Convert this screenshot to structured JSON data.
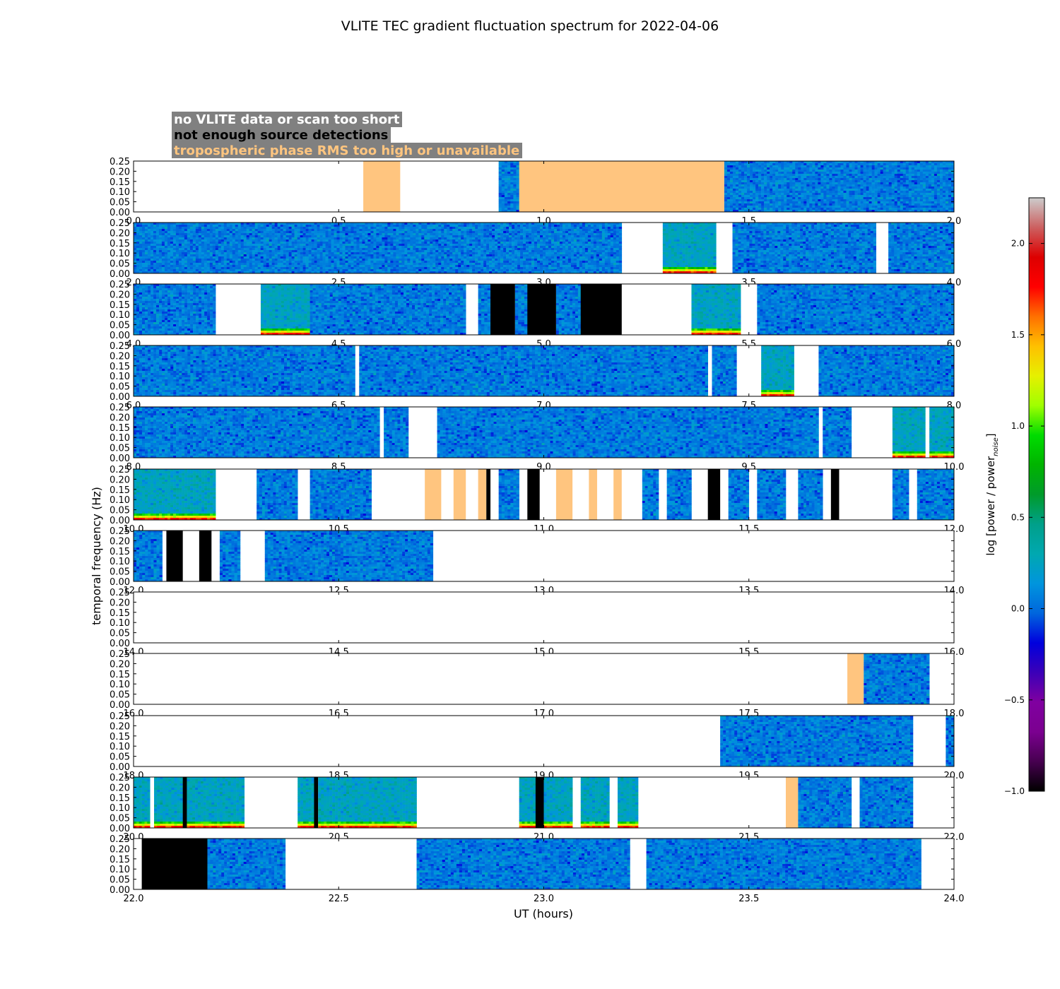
{
  "chart_data": {
    "type": "heatmap",
    "title": "VLITE TEC gradient fluctuation spectrum for 2022-04-06",
    "xlabel": "UT (hours)",
    "ylabel": "temporal frequency (Hz)",
    "ylim": [
      0,
      0.25
    ],
    "y_ticks": [
      "0.00",
      "0.05",
      "0.10",
      "0.15",
      "0.20",
      "0.25"
    ],
    "colorbar": {
      "label": "log [power / power",
      "label_sub": "noise",
      "label_end": "]",
      "colormap": "nipy_spectral",
      "range": [
        -1.0,
        2.25
      ],
      "ticks": [
        "−1.0",
        "−0.5",
        "0.0",
        "0.5",
        "1.0",
        "1.5",
        "2.0"
      ],
      "tick_values": [
        -1.0,
        -0.5,
        0.0,
        0.5,
        1.0,
        1.5,
        2.0
      ]
    },
    "legend": {
      "placement": "top-left",
      "items": [
        {
          "label": "no VLITE data or scan too short",
          "text_color": "#ffffff",
          "background": "#808080"
        },
        {
          "label": "not enough source detections",
          "text_color": "#000000",
          "background": "#808080"
        },
        {
          "label": "tropospheric phase RMS too high or unavailable",
          "text_color": "#ffc57f",
          "background": "#808080"
        }
      ]
    },
    "category_colors": {
      "no_data": "#ffffff",
      "no_detections": "#000000",
      "troposphere": "#ffc57f"
    },
    "panels": [
      {
        "xrange": [
          0,
          2
        ],
        "x_ticks": [
          "0.0",
          "0.5",
          "1.0",
          "1.5",
          "2.0"
        ],
        "segments": [
          {
            "start": 0.56,
            "end": 0.65,
            "kind": "troposphere"
          },
          {
            "start": 0.89,
            "end": 0.94,
            "kind": "data"
          },
          {
            "start": 0.94,
            "end": 1.44,
            "kind": "troposphere"
          },
          {
            "start": 1.44,
            "end": 2.0,
            "kind": "data"
          }
        ]
      },
      {
        "xrange": [
          2,
          4
        ],
        "x_ticks": [
          "2.0",
          "2.5",
          "3.0",
          "3.5",
          "4.0"
        ],
        "segments": [
          {
            "start": 2.0,
            "end": 3.19,
            "kind": "data"
          },
          {
            "start": 3.29,
            "end": 3.42,
            "kind": "data",
            "low_power": true
          },
          {
            "start": 3.46,
            "end": 3.81,
            "kind": "data"
          },
          {
            "start": 3.84,
            "end": 4.0,
            "kind": "data"
          }
        ]
      },
      {
        "xrange": [
          4,
          6
        ],
        "x_ticks": [
          "4.0",
          "4.5",
          "5.0",
          "5.5",
          "6.0"
        ],
        "segments": [
          {
            "start": 4.0,
            "end": 4.2,
            "kind": "data"
          },
          {
            "start": 4.31,
            "end": 4.43,
            "kind": "data",
            "low_power": true
          },
          {
            "start": 4.43,
            "end": 4.81,
            "kind": "data"
          },
          {
            "start": 4.84,
            "end": 4.87,
            "kind": "data"
          },
          {
            "start": 4.87,
            "end": 4.93,
            "kind": "no_detections"
          },
          {
            "start": 4.93,
            "end": 4.96,
            "kind": "data"
          },
          {
            "start": 4.96,
            "end": 5.03,
            "kind": "no_detections"
          },
          {
            "start": 5.03,
            "end": 5.09,
            "kind": "data"
          },
          {
            "start": 5.09,
            "end": 5.19,
            "kind": "no_detections"
          },
          {
            "start": 5.36,
            "end": 5.48,
            "kind": "data",
            "low_power": true
          },
          {
            "start": 5.52,
            "end": 6.0,
            "kind": "data"
          }
        ]
      },
      {
        "xrange": [
          6,
          8
        ],
        "x_ticks": [
          "6.0",
          "6.5",
          "7.0",
          "7.5",
          "8.0"
        ],
        "segments": [
          {
            "start": 6.0,
            "end": 6.54,
            "kind": "data"
          },
          {
            "start": 6.55,
            "end": 7.4,
            "kind": "data"
          },
          {
            "start": 7.41,
            "end": 7.47,
            "kind": "data"
          },
          {
            "start": 7.53,
            "end": 7.61,
            "kind": "data",
            "low_power": true
          },
          {
            "start": 7.67,
            "end": 8.0,
            "kind": "data"
          }
        ]
      },
      {
        "xrange": [
          8,
          10
        ],
        "x_ticks": [
          "8.0",
          "8.5",
          "9.0",
          "9.5",
          "10.0"
        ],
        "segments": [
          {
            "start": 8.0,
            "end": 8.6,
            "kind": "data"
          },
          {
            "start": 8.61,
            "end": 8.67,
            "kind": "data"
          },
          {
            "start": 8.74,
            "end": 9.67,
            "kind": "data"
          },
          {
            "start": 9.68,
            "end": 9.75,
            "kind": "data"
          },
          {
            "start": 9.85,
            "end": 9.93,
            "kind": "data",
            "low_power": true
          },
          {
            "start": 9.94,
            "end": 10.0,
            "kind": "data",
            "low_power": true
          }
        ]
      },
      {
        "xrange": [
          10,
          12
        ],
        "x_ticks": [
          "10.0",
          "10.5",
          "11.0",
          "11.5",
          "12.0"
        ],
        "segments": [
          {
            "start": 10.0,
            "end": 10.2,
            "kind": "data",
            "low_power": true
          },
          {
            "start": 10.3,
            "end": 10.4,
            "kind": "data"
          },
          {
            "start": 10.43,
            "end": 10.58,
            "kind": "data"
          },
          {
            "start": 10.71,
            "end": 10.75,
            "kind": "troposphere"
          },
          {
            "start": 10.78,
            "end": 10.81,
            "kind": "troposphere"
          },
          {
            "start": 10.84,
            "end": 10.86,
            "kind": "troposphere"
          },
          {
            "start": 10.86,
            "end": 10.87,
            "kind": "no_detections"
          },
          {
            "start": 10.89,
            "end": 10.94,
            "kind": "data"
          },
          {
            "start": 10.96,
            "end": 10.99,
            "kind": "no_detections"
          },
          {
            "start": 11.03,
            "end": 11.07,
            "kind": "troposphere"
          },
          {
            "start": 11.11,
            "end": 11.13,
            "kind": "troposphere"
          },
          {
            "start": 11.17,
            "end": 11.19,
            "kind": "troposphere"
          },
          {
            "start": 11.24,
            "end": 11.28,
            "kind": "data"
          },
          {
            "start": 11.3,
            "end": 11.36,
            "kind": "data"
          },
          {
            "start": 11.4,
            "end": 11.43,
            "kind": "no_detections"
          },
          {
            "start": 11.45,
            "end": 11.5,
            "kind": "data"
          },
          {
            "start": 11.52,
            "end": 11.59,
            "kind": "data"
          },
          {
            "start": 11.62,
            "end": 11.68,
            "kind": "data"
          },
          {
            "start": 11.7,
            "end": 11.72,
            "kind": "no_detections"
          },
          {
            "start": 11.85,
            "end": 11.89,
            "kind": "data"
          },
          {
            "start": 11.91,
            "end": 12.0,
            "kind": "data"
          }
        ]
      },
      {
        "xrange": [
          12,
          14
        ],
        "x_ticks": [
          "12.0",
          "12.5",
          "13.0",
          "13.5",
          "14.0"
        ],
        "segments": [
          {
            "start": 12.0,
            "end": 12.07,
            "kind": "data"
          },
          {
            "start": 12.08,
            "end": 12.12,
            "kind": "no_detections"
          },
          {
            "start": 12.16,
            "end": 12.19,
            "kind": "no_detections"
          },
          {
            "start": 12.21,
            "end": 12.26,
            "kind": "data"
          },
          {
            "start": 12.32,
            "end": 12.73,
            "kind": "data"
          }
        ]
      },
      {
        "xrange": [
          14,
          16
        ],
        "x_ticks": [
          "14.0",
          "14.5",
          "15.0",
          "15.5",
          "16.0"
        ],
        "segments": []
      },
      {
        "xrange": [
          16,
          18
        ],
        "x_ticks": [
          "16.0",
          "16.5",
          "17.0",
          "17.5",
          "18.0"
        ],
        "segments": [
          {
            "start": 17.74,
            "end": 17.78,
            "kind": "troposphere"
          },
          {
            "start": 17.78,
            "end": 17.94,
            "kind": "data"
          }
        ]
      },
      {
        "xrange": [
          18,
          20
        ],
        "x_ticks": [
          "18.0",
          "18.5",
          "19.0",
          "19.5",
          "20.0"
        ],
        "segments": [
          {
            "start": 19.43,
            "end": 19.9,
            "kind": "data"
          },
          {
            "start": 19.98,
            "end": 20.0,
            "kind": "data"
          }
        ]
      },
      {
        "xrange": [
          20,
          22
        ],
        "x_ticks": [
          "20.0",
          "20.5",
          "21.0",
          "21.5",
          "22.0"
        ],
        "segments": [
          {
            "start": 20.0,
            "end": 20.04,
            "kind": "data",
            "low_power": true
          },
          {
            "start": 20.05,
            "end": 20.12,
            "kind": "data",
            "low_power": true
          },
          {
            "start": 20.12,
            "end": 20.13,
            "kind": "no_detections"
          },
          {
            "start": 20.13,
            "end": 20.21,
            "kind": "data",
            "low_power": true
          },
          {
            "start": 20.21,
            "end": 20.27,
            "kind": "data",
            "low_power": true
          },
          {
            "start": 20.4,
            "end": 20.44,
            "kind": "data",
            "low_power": true
          },
          {
            "start": 20.44,
            "end": 20.45,
            "kind": "no_detections"
          },
          {
            "start": 20.45,
            "end": 20.69,
            "kind": "data",
            "low_power": true
          },
          {
            "start": 20.94,
            "end": 20.98,
            "kind": "data",
            "low_power": true
          },
          {
            "start": 20.98,
            "end": 21.0,
            "kind": "no_detections"
          },
          {
            "start": 21.0,
            "end": 21.07,
            "kind": "data",
            "low_power": true
          },
          {
            "start": 21.09,
            "end": 21.16,
            "kind": "data",
            "low_power": true
          },
          {
            "start": 21.18,
            "end": 21.23,
            "kind": "data",
            "low_power": true
          },
          {
            "start": 21.59,
            "end": 21.62,
            "kind": "troposphere"
          },
          {
            "start": 21.62,
            "end": 21.75,
            "kind": "data"
          },
          {
            "start": 21.77,
            "end": 21.9,
            "kind": "data"
          }
        ]
      },
      {
        "xrange": [
          22,
          24
        ],
        "x_ticks": [
          "22.0",
          "22.5",
          "23.0",
          "23.5",
          "24.0"
        ],
        "segments": [
          {
            "start": 22.02,
            "end": 22.18,
            "kind": "no_detections"
          },
          {
            "start": 22.18,
            "end": 22.37,
            "kind": "data"
          },
          {
            "start": 22.69,
            "end": 23.21,
            "kind": "data"
          },
          {
            "start": 23.25,
            "end": 23.92,
            "kind": "data"
          }
        ]
      }
    ]
  }
}
